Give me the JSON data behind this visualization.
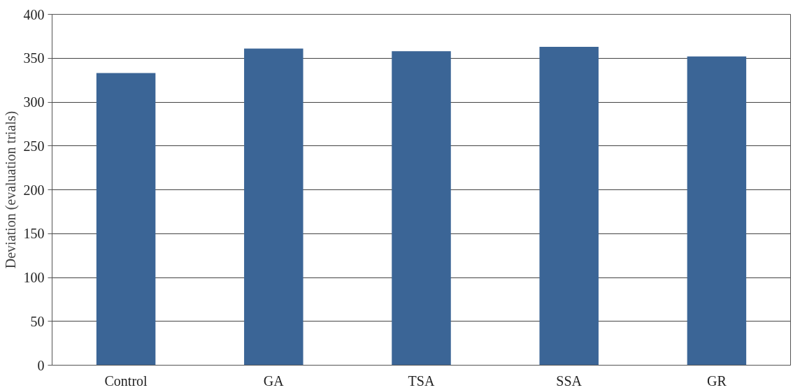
{
  "chart_data": {
    "type": "bar",
    "ylabel": "Deviation (evaluation trials)",
    "categories": [
      "Control",
      "GA",
      "TSA",
      "SSA",
      "GR"
    ],
    "values": [
      333,
      361,
      358,
      363,
      352
    ],
    "color": "#3b6596",
    "ylim": [
      0,
      400
    ],
    "yticks": [
      0,
      50,
      100,
      150,
      200,
      250,
      300,
      350,
      400
    ],
    "grid": "y"
  }
}
